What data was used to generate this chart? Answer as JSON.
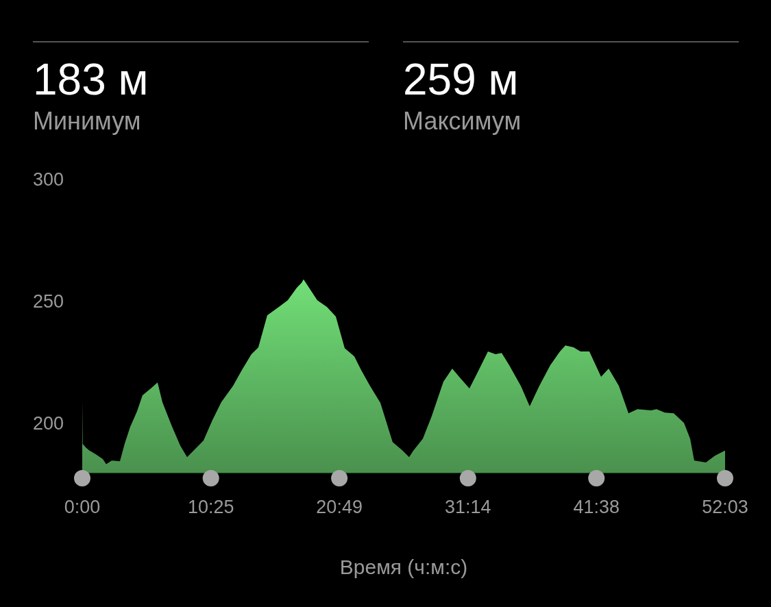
{
  "chart_data": {
    "type": "area",
    "xlabel": "Время (ч:м:с)",
    "annotations": [
      "183 м",
      "Минимум",
      "259 м",
      "Максимум"
    ],
    "xlim": [
      0,
      52.05
    ],
    "ylim": [
      179.5,
      300
    ],
    "xticks": [
      {
        "value": 0,
        "label": "0:00"
      },
      {
        "value": 10.4167,
        "label": "10:25"
      },
      {
        "value": 20.8167,
        "label": "20:49"
      },
      {
        "value": 31.2333,
        "label": "31:14"
      },
      {
        "value": 41.6333,
        "label": "41:38"
      },
      {
        "value": 52.05,
        "label": "52:03"
      }
    ],
    "yticks": [
      200,
      250,
      300
    ],
    "grid": false,
    "series": [
      {
        "color": "#5cb460",
        "x": [
          0,
          0.04,
          0.28,
          0.55,
          1.11,
          1.66,
          1.94,
          2.39,
          3.05,
          3.44,
          3.88,
          4.44,
          4.88,
          5.55,
          6.1,
          6.49,
          7.21,
          7.93,
          8.49,
          9.04,
          9.82,
          10.54,
          11.26,
          12.21,
          12.93,
          13.7,
          14.26,
          14.98,
          15.92,
          16.64,
          17.37,
          17.75,
          17.92,
          19.03,
          19.81,
          20.53,
          21.25,
          22.03,
          22.58,
          23.3,
          24.14,
          25.13,
          25.91,
          26.47,
          26.8,
          27.58,
          28.3,
          29.24,
          29.96,
          30.52,
          31.35,
          32.02,
          32.85,
          33.46,
          33.96,
          34.57,
          35.51,
          36.23,
          37.01,
          37.9,
          38.68,
          39.12,
          39.79,
          40.34,
          41.06,
          42.01,
          42.62,
          43.45,
          44.23,
          44.95,
          46.06,
          46.5,
          47.17,
          47.89,
          48.72,
          49.22,
          49.55,
          50.5,
          51.22,
          52,
          52.05
        ],
        "values": [
          209,
          191.3,
          189.9,
          188.7,
          187,
          185.1,
          183,
          184.5,
          184.2,
          191.5,
          198.3,
          204.8,
          211.3,
          214.1,
          216.6,
          208.5,
          199.2,
          190.7,
          185.9,
          188.7,
          192.7,
          201.1,
          208.5,
          215.2,
          221.7,
          228.2,
          231,
          244.2,
          247.6,
          250.4,
          255.5,
          257.5,
          259,
          250.4,
          247.6,
          243.7,
          230.7,
          227.3,
          221.7,
          215.2,
          208.2,
          192.1,
          188.7,
          185.9,
          188.5,
          193.5,
          202.8,
          216.9,
          222.3,
          218.9,
          214.1,
          220.8,
          229.3,
          228.2,
          228.7,
          223.7,
          215.2,
          206.8,
          215.2,
          223.7,
          229.3,
          231.8,
          231,
          229.3,
          229.3,
          218.9,
          222.3,
          215.2,
          203.9,
          205.6,
          205.1,
          205.6,
          204.2,
          203.9,
          200,
          193.5,
          184.5,
          183.7,
          186.5,
          188.5,
          188.5
        ]
      }
    ]
  }
}
